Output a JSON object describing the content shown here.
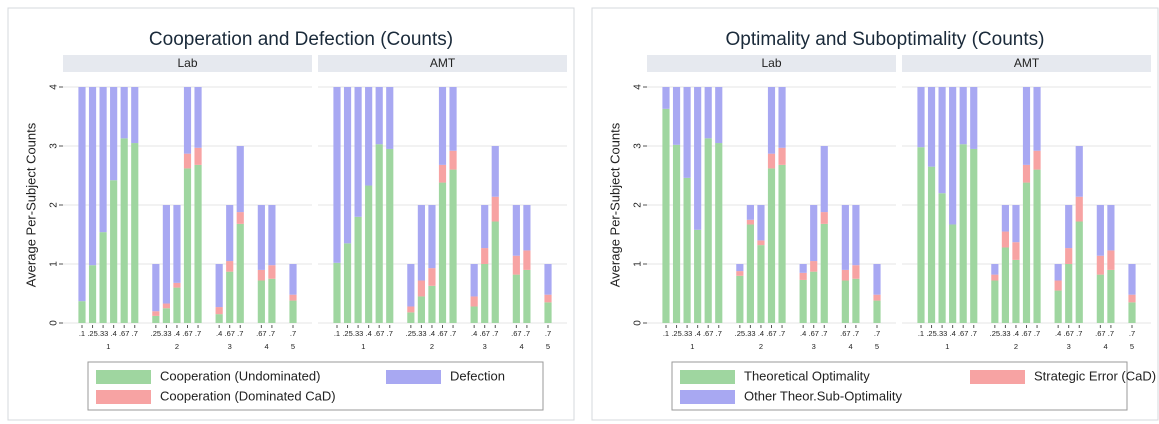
{
  "chart_data": [
    {
      "type": "bar",
      "stacked": true,
      "title": "Cooperation and Defection (Counts)",
      "ylabel": "Average Per-Subject Counts",
      "ylim": [
        0,
        4
      ],
      "yticks": [
        0,
        1,
        2,
        3,
        4
      ],
      "grid": true,
      "series": [
        {
          "name": "Cooperation (Undominated)",
          "color": "#9fd6a0"
        },
        {
          "name": "Cooperation (Dominated CaD)",
          "color": "#f7a3a3"
        },
        {
          "name": "Defection",
          "color": "#a8a8f2"
        }
      ],
      "groups": [
        {
          "label": "1",
          "categories": [
            ".1",
            ".25",
            ".33",
            ".4",
            ".67",
            ".7"
          ]
        },
        {
          "label": "2",
          "categories": [
            ".25",
            ".33",
            ".4",
            ".67",
            ".7"
          ]
        },
        {
          "label": "3",
          "categories": [
            ".4",
            ".67",
            ".7"
          ]
        },
        {
          "label": "4",
          "categories": [
            ".67",
            ".7"
          ]
        },
        {
          "label": "5",
          "categories": [
            ".7"
          ]
        }
      ],
      "panels": [
        {
          "name": "Lab",
          "values": [
            [
              0.37,
              0.98,
              1.54,
              2.42,
              3.13,
              3.05,
              0.12,
              0.25,
              0.6,
              2.62,
              2.68,
              0.15,
              0.87,
              1.68,
              0.72,
              0.75,
              0.38
            ],
            [
              0,
              0,
              0,
              0,
              0,
              0,
              0.08,
              0.08,
              0.08,
              0.25,
              0.29,
              0.12,
              0.18,
              0.2,
              0.18,
              0.23,
              0.1
            ],
            [
              3.63,
              3.02,
              2.46,
              1.58,
              0.87,
              0.95,
              0.8,
              1.67,
              1.32,
              1.13,
              1.03,
              0.73,
              0.95,
              1.12,
              1.1,
              1.02,
              0.52
            ]
          ]
        },
        {
          "name": "AMT",
          "values": [
            [
              1.02,
              1.35,
              1.8,
              2.33,
              3.03,
              2.95,
              0.18,
              0.45,
              0.63,
              2.38,
              2.6,
              0.28,
              1.0,
              1.72,
              0.82,
              0.9,
              0.35
            ],
            [
              0,
              0,
              0,
              0,
              0,
              0,
              0.1,
              0.27,
              0.3,
              0.3,
              0.32,
              0.17,
              0.27,
              0.42,
              0.32,
              0.33,
              0.13
            ],
            [
              2.98,
              2.65,
              2.2,
              1.67,
              0.97,
              1.05,
              0.72,
              1.28,
              1.07,
              1.32,
              1.08,
              0.55,
              0.73,
              0.86,
              0.86,
              0.77,
              0.52
            ]
          ]
        }
      ]
    },
    {
      "type": "bar",
      "stacked": true,
      "title": "Optimality and Suboptimality (Counts)",
      "ylabel": "Average Per-Subject Counts",
      "ylim": [
        0,
        4
      ],
      "yticks": [
        0,
        1,
        2,
        3,
        4
      ],
      "grid": true,
      "series": [
        {
          "name": "Theoretical Optimality",
          "color": "#9fd6a0"
        },
        {
          "name": "Strategic Error (CaD)",
          "color": "#f7a3a3"
        },
        {
          "name": "Other Theor.Sub-Optimality",
          "color": "#a8a8f2"
        }
      ],
      "groups": [
        {
          "label": "1",
          "categories": [
            ".1",
            ".25",
            ".33",
            ".4",
            ".67",
            ".7"
          ]
        },
        {
          "label": "2",
          "categories": [
            ".25",
            ".33",
            ".4",
            ".67",
            ".7"
          ]
        },
        {
          "label": "3",
          "categories": [
            ".4",
            ".67",
            ".7"
          ]
        },
        {
          "label": "4",
          "categories": [
            ".67",
            ".7"
          ]
        },
        {
          "label": "5",
          "categories": [
            ".7"
          ]
        }
      ],
      "panels": [
        {
          "name": "Lab",
          "values": [
            [
              3.63,
              3.02,
              2.46,
              1.58,
              3.13,
              3.05,
              0.8,
              1.67,
              1.32,
              2.62,
              2.68,
              0.73,
              0.87,
              1.68,
              0.72,
              0.75,
              0.38
            ],
            [
              0,
              0,
              0,
              0,
              0,
              0,
              0.08,
              0.08,
              0.08,
              0.25,
              0.29,
              0.12,
              0.18,
              0.2,
              0.18,
              0.23,
              0.1
            ],
            [
              0.37,
              0.98,
              1.54,
              2.42,
              0.87,
              0.95,
              0.12,
              0.25,
              0.6,
              1.13,
              1.03,
              0.15,
              0.95,
              1.12,
              1.1,
              1.02,
              0.52
            ]
          ]
        },
        {
          "name": "AMT",
          "values": [
            [
              2.98,
              2.65,
              2.2,
              1.67,
              3.03,
              2.95,
              0.72,
              1.28,
              1.07,
              2.38,
              2.6,
              0.55,
              1.0,
              1.72,
              0.82,
              0.9,
              0.35
            ],
            [
              0,
              0,
              0,
              0,
              0,
              0,
              0.1,
              0.27,
              0.3,
              0.3,
              0.32,
              0.17,
              0.27,
              0.42,
              0.32,
              0.33,
              0.13
            ],
            [
              1.02,
              1.35,
              1.8,
              2.33,
              0.97,
              1.05,
              0.18,
              0.45,
              0.63,
              1.32,
              1.08,
              0.28,
              0.73,
              0.86,
              0.86,
              0.77,
              0.52
            ]
          ]
        }
      ]
    }
  ]
}
